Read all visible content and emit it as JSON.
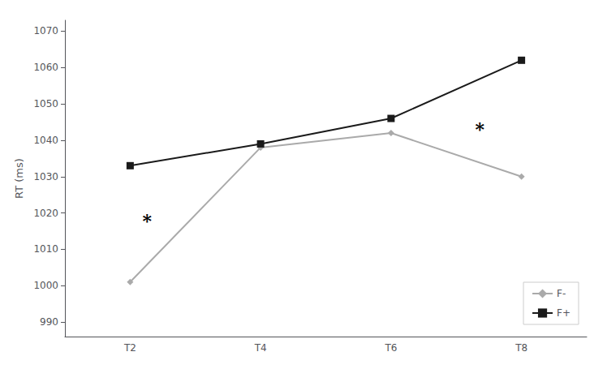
{
  "chart_data": {
    "type": "line",
    "categories": [
      "T2",
      "T4",
      "T6",
      "T8"
    ],
    "series": [
      {
        "name": "F-",
        "values": [
          1001,
          1038,
          1042,
          1030
        ],
        "color": "#aaaaaa",
        "marker": "diamond"
      },
      {
        "name": "F+",
        "values": [
          1033,
          1039,
          1046,
          1062
        ],
        "color": "#1a1a1a",
        "marker": "square"
      }
    ],
    "ylabel": "RT (ms)",
    "ylim": [
      986,
      1073
    ],
    "yticks": [
      990,
      1000,
      1010,
      1020,
      1030,
      1040,
      1050,
      1060,
      1070
    ],
    "annotations": [
      {
        "text": "*",
        "x": 0.13,
        "y": 1018
      },
      {
        "text": "*",
        "x": 2.68,
        "y": 1043
      }
    ],
    "grid": false,
    "legend": "lower right"
  }
}
